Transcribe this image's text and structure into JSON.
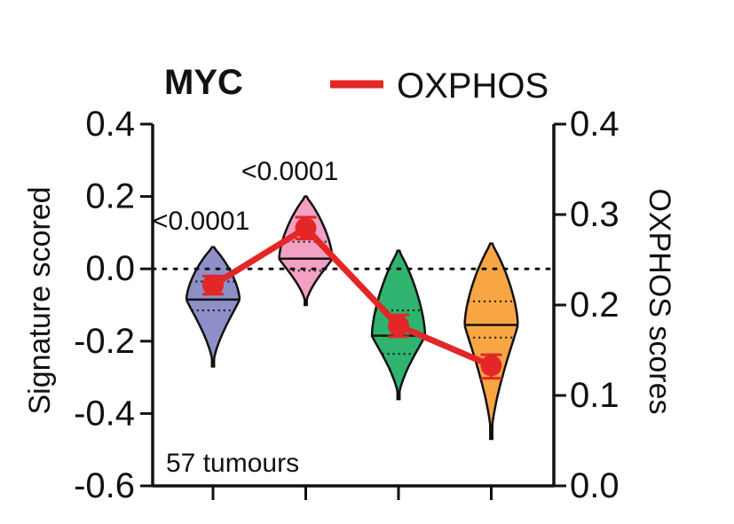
{
  "chart_data": {
    "type": "violin",
    "title": "MYC",
    "legend": {
      "label": "OXPHOS",
      "color": "#e32626",
      "placement": "top-right"
    },
    "ylabel_left": "Signature scored",
    "ylabel_right": "OXPHOS scores",
    "ylim_left": [
      -0.6,
      0.4
    ],
    "ylim_right": [
      0.0,
      0.4
    ],
    "yticks_left": [
      "0.4",
      "0.2",
      "0.0",
      "-0.2",
      "-0.4",
      "-0.6"
    ],
    "yticks_left_values": [
      0.4,
      0.2,
      0.0,
      -0.2,
      -0.4,
      -0.6
    ],
    "yticks_right": [
      "0.4",
      "0.3",
      "0.2",
      "0.1",
      "0.0"
    ],
    "yticks_right_values": [
      0.4,
      0.3,
      0.2,
      0.1,
      0.0
    ],
    "reference_line": 0.0,
    "annotation": "57 tumours",
    "group_count": 4,
    "groups": [
      {
        "color": "#8f8fc8",
        "min": -0.27,
        "max": 0.06,
        "median": -0.085,
        "q1": -0.115,
        "q3": -0.035
      },
      {
        "color": "#f2a0c4",
        "min": -0.1,
        "max": 0.2,
        "median": 0.028,
        "q1": -0.005,
        "q3": 0.075
      },
      {
        "color": "#2fb36e",
        "min": -0.36,
        "max": 0.05,
        "median": -0.185,
        "q1": -0.235,
        "q3": -0.115
      },
      {
        "color": "#f8a644",
        "min": -0.47,
        "max": 0.07,
        "median": -0.155,
        "q1": -0.19,
        "q3": -0.09
      }
    ],
    "series": [
      {
        "name": "OXPHOS",
        "axis": "right",
        "values": [
          0.222,
          0.285,
          0.177,
          0.133
        ],
        "error_low": [
          0.212,
          0.273,
          0.165,
          0.119
        ],
        "error_high": [
          0.232,
          0.297,
          0.189,
          0.145
        ]
      }
    ],
    "pvalue_labels": [
      "<0.0001",
      "<0.0001"
    ]
  }
}
